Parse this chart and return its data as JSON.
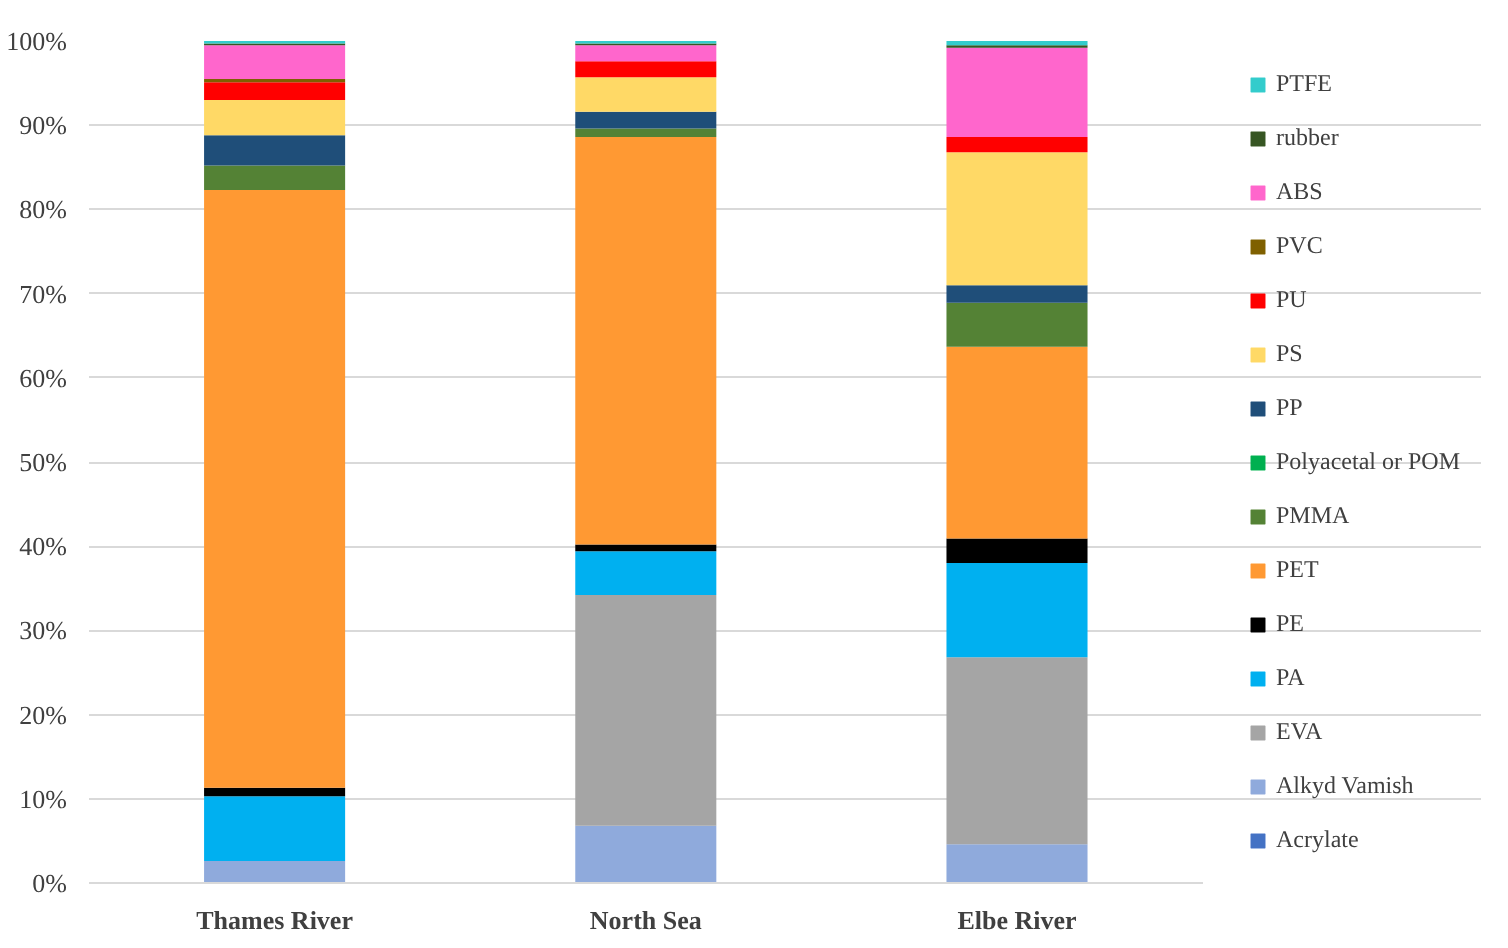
{
  "chart_data": {
    "type": "bar",
    "stacked": true,
    "categories": [
      "Thames River",
      "North Sea",
      "Elbe River"
    ],
    "ylim": [
      0,
      100
    ],
    "yticks": [
      {
        "value": 0,
        "label": "0%"
      },
      {
        "value": 10,
        "label": "10%"
      },
      {
        "value": 20,
        "label": "20%"
      },
      {
        "value": 30,
        "label": "30%"
      },
      {
        "value": 40,
        "label": "40%"
      },
      {
        "value": 50,
        "label": "50%"
      },
      {
        "value": 60,
        "label": "60%"
      },
      {
        "value": 70,
        "label": "70%"
      },
      {
        "value": 80,
        "label": "80%"
      },
      {
        "value": 90,
        "label": "90%"
      },
      {
        "value": 100,
        "label": "100%"
      }
    ],
    "grid": "y",
    "legend": "right",
    "series": [
      {
        "name": "Acrylate",
        "color": "#4472c4",
        "values": [
          0,
          0,
          0
        ]
      },
      {
        "name": "Alkyd Vamish",
        "color": "#8faadc",
        "values": [
          2.6,
          6.8,
          4.6
        ]
      },
      {
        "name": "EVA",
        "color": "#a5a5a5",
        "values": [
          0,
          27.4,
          22.2
        ]
      },
      {
        "name": "PA",
        "color": "#00b0f0",
        "values": [
          7.7,
          5.2,
          11.2
        ]
      },
      {
        "name": "PE",
        "color": "#000000",
        "values": [
          1.0,
          0.8,
          2.9
        ]
      },
      {
        "name": "PET",
        "color": "#ff9933",
        "values": [
          71.0,
          48.4,
          22.8
        ]
      },
      {
        "name": "PMMA",
        "color": "#548235",
        "values": [
          2.9,
          1.0,
          5.2
        ]
      },
      {
        "name": "Polyacetal or POM",
        "color": "#00b050",
        "values": [
          0,
          0,
          0
        ]
      },
      {
        "name": "PP",
        "color": "#1f4e79",
        "values": [
          3.6,
          2.0,
          2.1
        ]
      },
      {
        "name": "PS",
        "color": "#ffd966",
        "values": [
          4.2,
          4.1,
          15.8
        ]
      },
      {
        "name": "PU",
        "color": "#ff0000",
        "values": [
          2.1,
          1.9,
          1.8
        ]
      },
      {
        "name": "PVC",
        "color": "#7f6000",
        "values": [
          0.4,
          0,
          0
        ]
      },
      {
        "name": "ABS",
        "color": "#ff66cc",
        "values": [
          4.0,
          1.9,
          10.6
        ]
      },
      {
        "name": "rubber",
        "color": "#375623",
        "values": [
          0.2,
          0.2,
          0.3
        ]
      },
      {
        "name": "PTFE",
        "color": "#33cccc",
        "values": [
          0.3,
          0.3,
          0.5
        ]
      }
    ]
  }
}
